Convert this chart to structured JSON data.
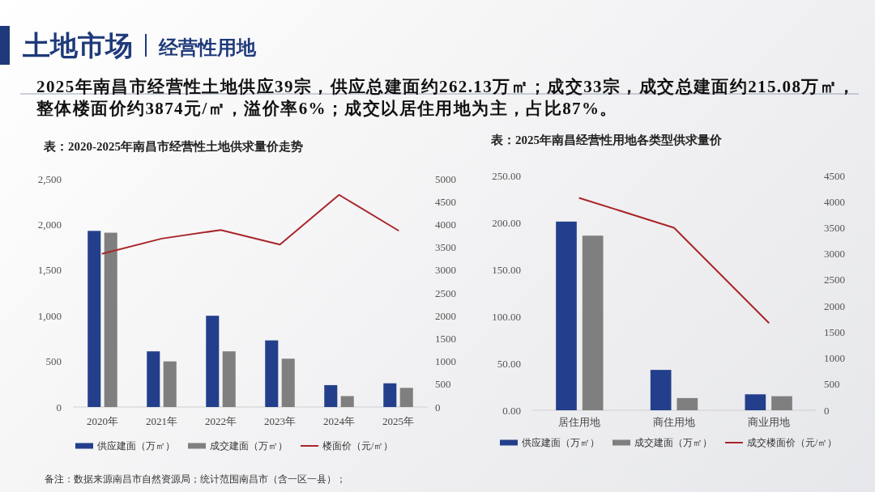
{
  "chart_data": [
    {
      "type": "other",
      "title": "土地市场",
      "subtitle": "经营性用地",
      "annotations": [
        "2025年南昌市经营性土地供应39宗，供应总建面约262.13万㎡；成交33宗，成交总建面约215.08万㎡，整体楼面价约3874元/㎡，溢价率6%；成交以居住用地为主，占比87%。",
        "备注：数据来源南昌市自然资源局；统计范围南昌市（含一区一县）；"
      ]
    },
    {
      "type": "bar",
      "title": "表：2020-2025年南昌市经营性土地供求量价走势",
      "categories": [
        "2020年",
        "2021年",
        "2022年",
        "2023年",
        "2024年",
        "2025年"
      ],
      "series": [
        {
          "name": "供应建面（万㎡）",
          "color": "#233f8c",
          "values": [
            1930,
            610,
            1000,
            730,
            240,
            260
          ]
        },
        {
          "name": "成交建面（万㎡）",
          "color": "#7f7f7f",
          "values": [
            1910,
            500,
            610,
            530,
            120,
            210
          ]
        },
        {
          "name": "楼面价（元/㎡）",
          "type": "line",
          "axis": "y2",
          "color": "#a9262a",
          "values": [
            3360,
            3690,
            3880,
            3560,
            4650,
            3870
          ]
        }
      ],
      "ylim": [
        0,
        2500
      ],
      "yticks": [
        0,
        500,
        {
          "value": 1000,
          "label": "1,000"
        },
        {
          "value": 1500,
          "label": "1,500"
        },
        {
          "value": 2000,
          "label": "2,000"
        },
        {
          "value": 2500,
          "label": "2,500"
        }
      ],
      "y2lim": [
        0,
        5000
      ],
      "y2ticks": [
        0,
        500,
        1000,
        1500,
        2000,
        2500,
        3000,
        3500,
        4000,
        4500,
        5000
      ],
      "legend": "bottom"
    },
    {
      "type": "bar",
      "title": "表：2025年南昌经营性用地各类型供求量价",
      "categories": [
        "居住用地",
        "商住用地",
        "商业用地"
      ],
      "series": [
        {
          "name": "供应建面（万㎡）",
          "color": "#233f8c",
          "values": [
            201,
            43,
            17
          ]
        },
        {
          "name": "成交建面（万㎡）",
          "color": "#7f7f7f",
          "values": [
            186,
            13,
            15
          ]
        },
        {
          "name": "成交楼面价（元/㎡）",
          "type": "line",
          "axis": "y2",
          "color": "#a9262a",
          "values": [
            4070,
            3500,
            1680
          ]
        }
      ],
      "ylim": [
        0,
        250
      ],
      "yticks": [
        {
          "value": 0,
          "label": "0.00"
        },
        {
          "value": 50,
          "label": "50.00"
        },
        {
          "value": 100,
          "label": "100.00"
        },
        {
          "value": 150,
          "label": "150.00"
        },
        {
          "value": 200,
          "label": "200.00"
        },
        {
          "value": 250,
          "label": "250.00"
        }
      ],
      "y2lim": [
        0,
        4500
      ],
      "y2ticks": [
        0,
        500,
        1000,
        1500,
        2000,
        2500,
        3000,
        3500,
        4000,
        4500
      ],
      "legend": "bottom"
    }
  ]
}
